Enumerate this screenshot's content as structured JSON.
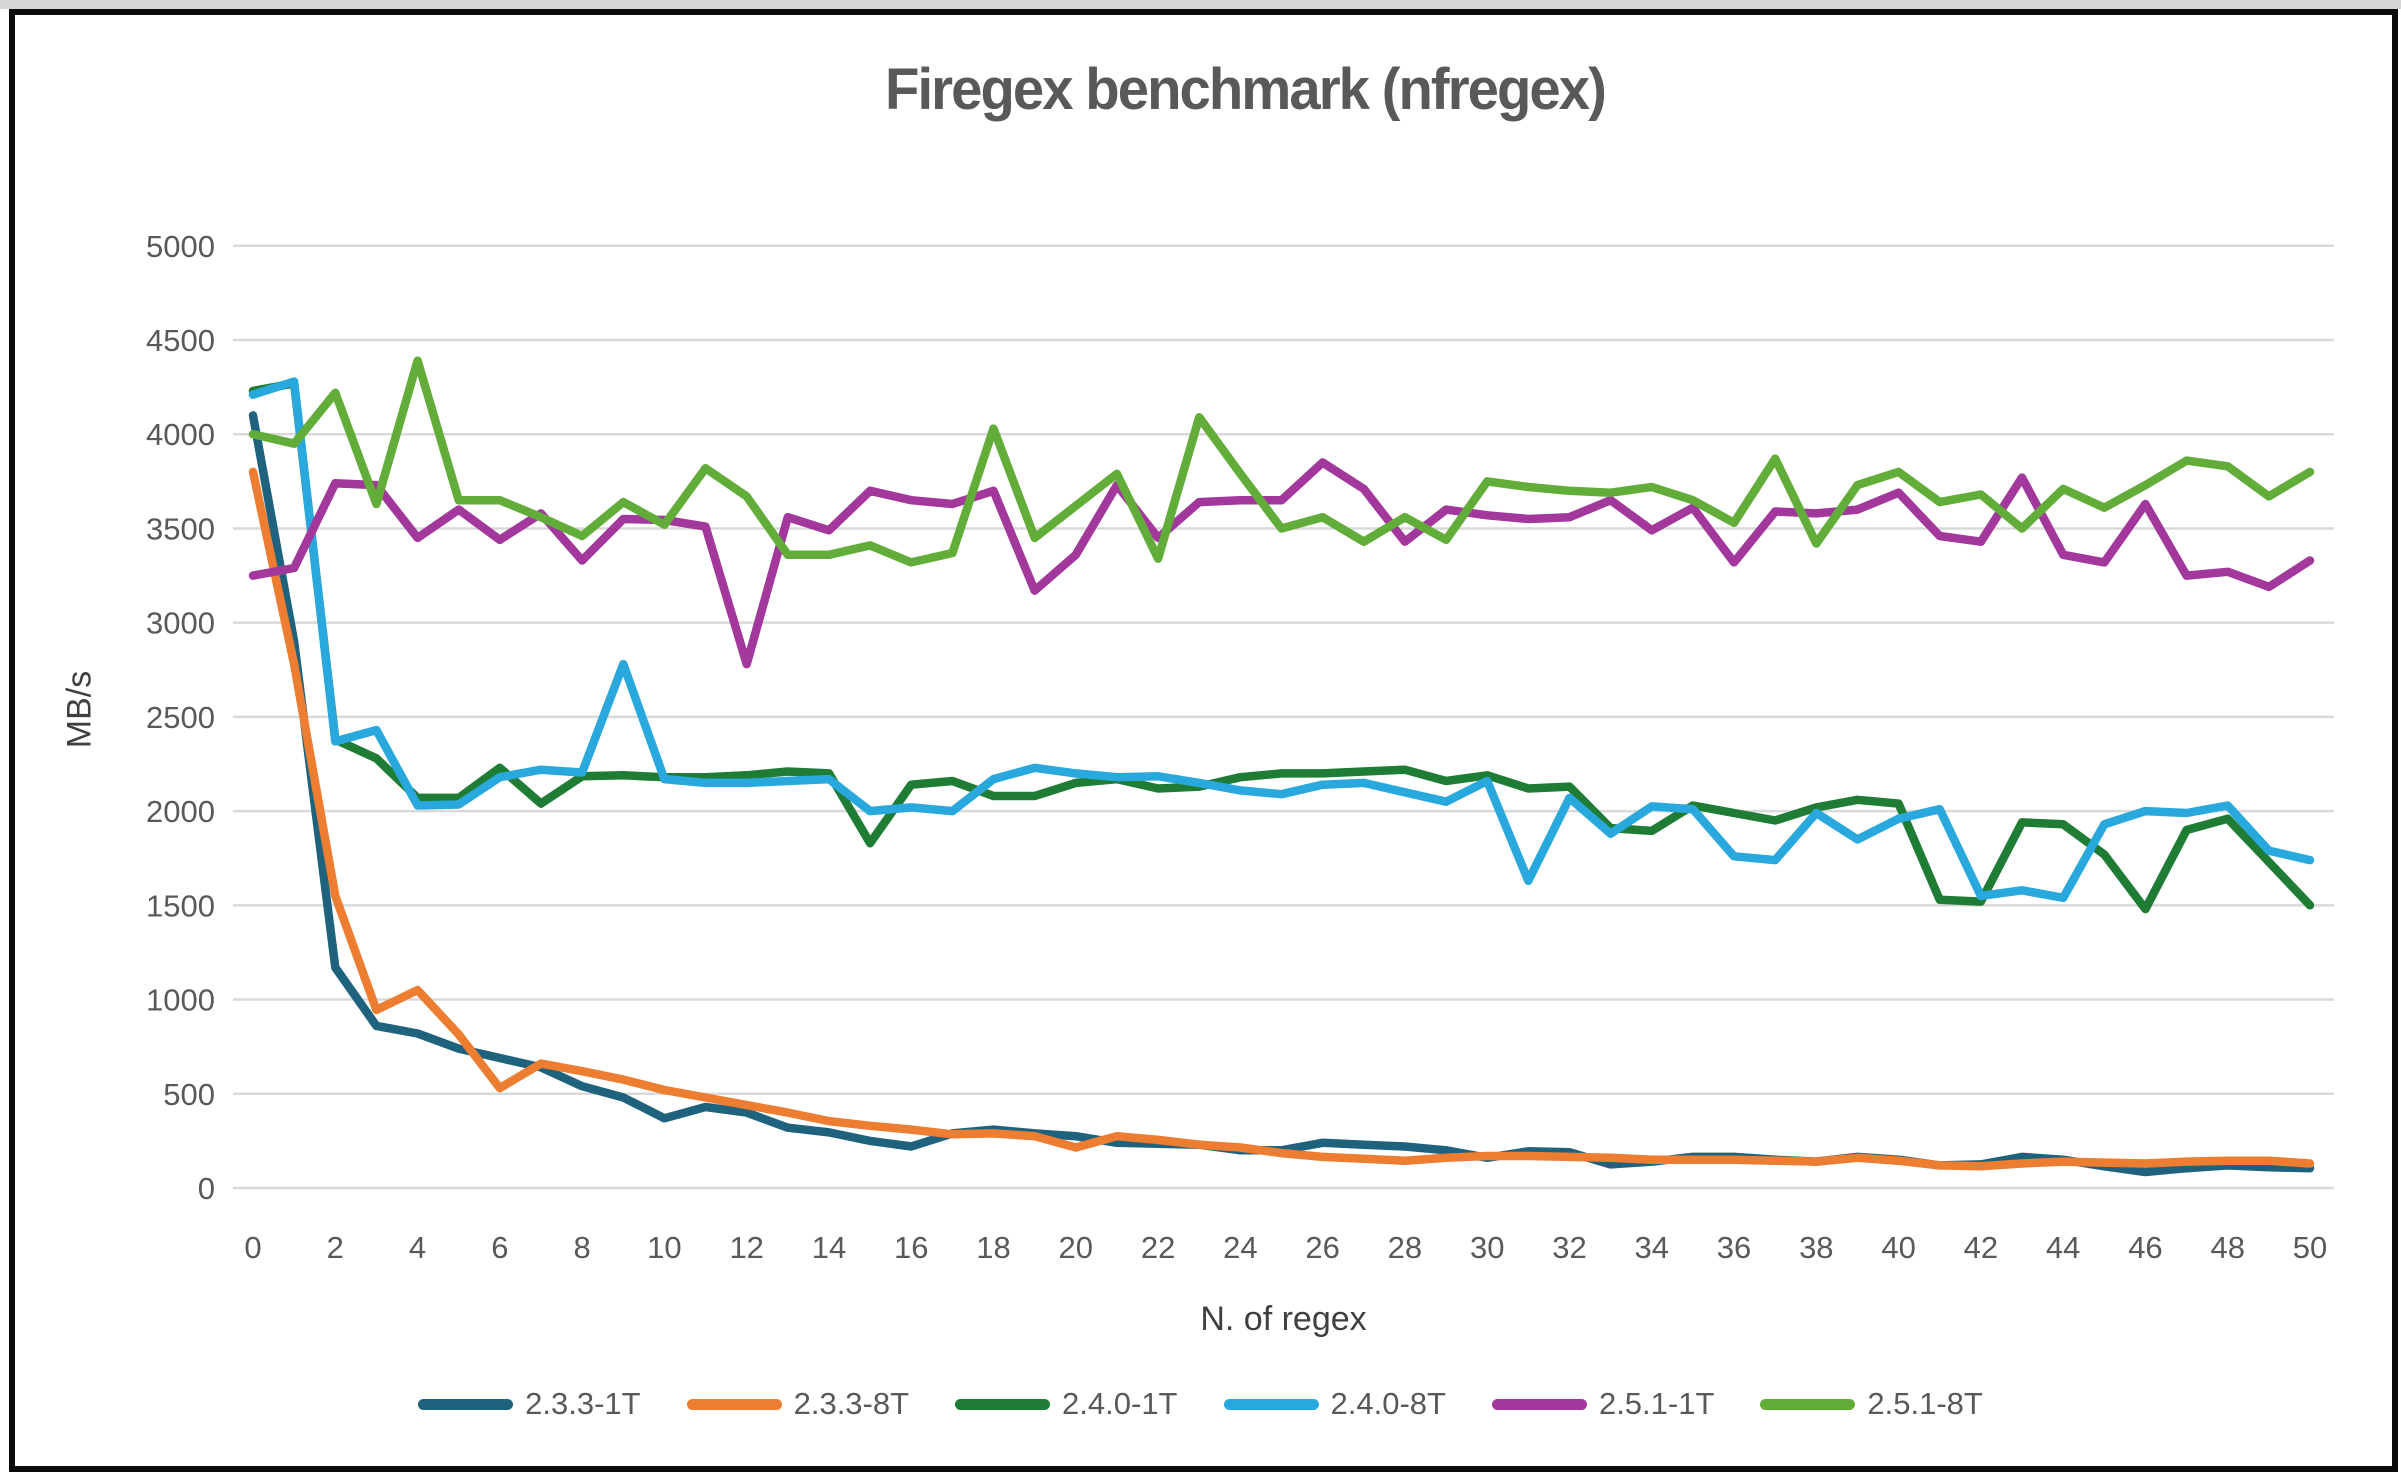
{
  "title": "Firegex benchmark (nfregex)",
  "chart_data": {
    "type": "line",
    "title": "Firegex benchmark (nfregex)",
    "xlabel": "N. of regex",
    "ylabel": "MB/s",
    "xlim": [
      0,
      50
    ],
    "x_tick_step": 2,
    "ylim": [
      0,
      5000
    ],
    "y_tick_step": 500,
    "grid": true,
    "legend_position": "bottom",
    "gridline_color": "#d9d9d9",
    "x": [
      0,
      1,
      2,
      3,
      4,
      5,
      6,
      7,
      8,
      9,
      10,
      11,
      12,
      13,
      14,
      15,
      16,
      17,
      18,
      19,
      20,
      21,
      22,
      23,
      24,
      25,
      26,
      27,
      28,
      29,
      30,
      31,
      32,
      33,
      34,
      35,
      36,
      37,
      38,
      39,
      40,
      41,
      42,
      43,
      44,
      45,
      46,
      47,
      48,
      49,
      50
    ],
    "series": [
      {
        "name": "2.3.3-1T",
        "color": "#1f627e",
        "values": [
          4100,
          2900,
          1170,
          860,
          820,
          740,
          690,
          640,
          540,
          480,
          370,
          430,
          400,
          320,
          295,
          250,
          220,
          290,
          310,
          290,
          275,
          240,
          235,
          230,
          200,
          200,
          240,
          230,
          220,
          200,
          160,
          195,
          190,
          125,
          140,
          165,
          165,
          150,
          140,
          165,
          150,
          120,
          125,
          165,
          150,
          115,
          85,
          105,
          120,
          110,
          105
        ]
      },
      {
        "name": "2.3.3-8T",
        "color": "#ed7d31",
        "values": [
          3800,
          2780,
          1550,
          945,
          1050,
          815,
          530,
          660,
          620,
          575,
          520,
          480,
          440,
          400,
          355,
          330,
          310,
          285,
          290,
          275,
          215,
          275,
          255,
          230,
          215,
          185,
          165,
          155,
          145,
          160,
          170,
          170,
          165,
          160,
          150,
          150,
          150,
          145,
          140,
          160,
          145,
          120,
          115,
          130,
          140,
          135,
          130,
          140,
          145,
          145,
          130
        ]
      },
      {
        "name": "2.4.0-1T",
        "color": "#1e7c34",
        "values": [
          4230,
          4270,
          2380,
          2280,
          2070,
          2070,
          2230,
          2040,
          2185,
          2190,
          2180,
          2180,
          2190,
          2210,
          2200,
          1830,
          2140,
          2160,
          2080,
          2080,
          2150,
          2170,
          2120,
          2130,
          2180,
          2200,
          2200,
          2210,
          2220,
          2160,
          2190,
          2120,
          2130,
          1910,
          1895,
          2030,
          1990,
          1950,
          2020,
          2060,
          2040,
          1530,
          1520,
          1940,
          1930,
          1770,
          1480,
          1900,
          1960,
          1730,
          1500
        ]
      },
      {
        "name": "2.4.0-8T",
        "color": "#29a8dd",
        "values": [
          4210,
          4280,
          2370,
          2430,
          2030,
          2035,
          2180,
          2220,
          2205,
          2780,
          2170,
          2150,
          2150,
          2160,
          2170,
          2000,
          2020,
          2000,
          2170,
          2230,
          2200,
          2180,
          2185,
          2150,
          2110,
          2090,
          2140,
          2150,
          2100,
          2050,
          2160,
          1630,
          2070,
          1880,
          2025,
          2010,
          1760,
          1740,
          1990,
          1850,
          1960,
          2010,
          1550,
          1580,
          1540,
          1930,
          2000,
          1990,
          2030,
          1790,
          1740
        ]
      },
      {
        "name": "2.5.1-1T",
        "color": "#a2379c",
        "values": [
          3250,
          3290,
          3740,
          3730,
          3450,
          3600,
          3440,
          3580,
          3330,
          3550,
          3545,
          3510,
          2780,
          3560,
          3490,
          3700,
          3650,
          3630,
          3700,
          3170,
          3360,
          3730,
          3450,
          3640,
          3650,
          3650,
          3850,
          3710,
          3430,
          3600,
          3570,
          3550,
          3560,
          3650,
          3490,
          3610,
          3320,
          3590,
          3580,
          3600,
          3690,
          3460,
          3430,
          3770,
          3360,
          3320,
          3630,
          3250,
          3270,
          3190,
          3330
        ]
      },
      {
        "name": "2.5.1-8T",
        "color": "#62ad39",
        "values": [
          4000,
          3950,
          4220,
          3630,
          4390,
          3650,
          3650,
          3560,
          3460,
          3640,
          3520,
          3820,
          3670,
          3360,
          3360,
          3410,
          3320,
          3370,
          4030,
          3450,
          3620,
          3790,
          3340,
          4090,
          3790,
          3500,
          3560,
          3430,
          3560,
          3440,
          3750,
          3720,
          3700,
          3690,
          3720,
          3650,
          3530,
          3870,
          3420,
          3730,
          3800,
          3640,
          3680,
          3500,
          3710,
          3610,
          3730,
          3860,
          3830,
          3670,
          3800
        ]
      }
    ]
  }
}
